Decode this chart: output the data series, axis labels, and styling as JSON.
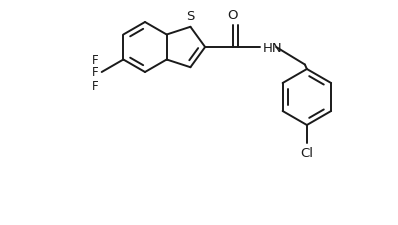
{
  "bg_color": "#ffffff",
  "line_color": "#1a1a1a",
  "line_width": 1.4,
  "font_size": 8.5,
  "figsize": [
    3.98,
    2.26
  ],
  "dpi": 100,
  "xlim": [
    0,
    398
  ],
  "ylim": [
    0,
    226
  ]
}
